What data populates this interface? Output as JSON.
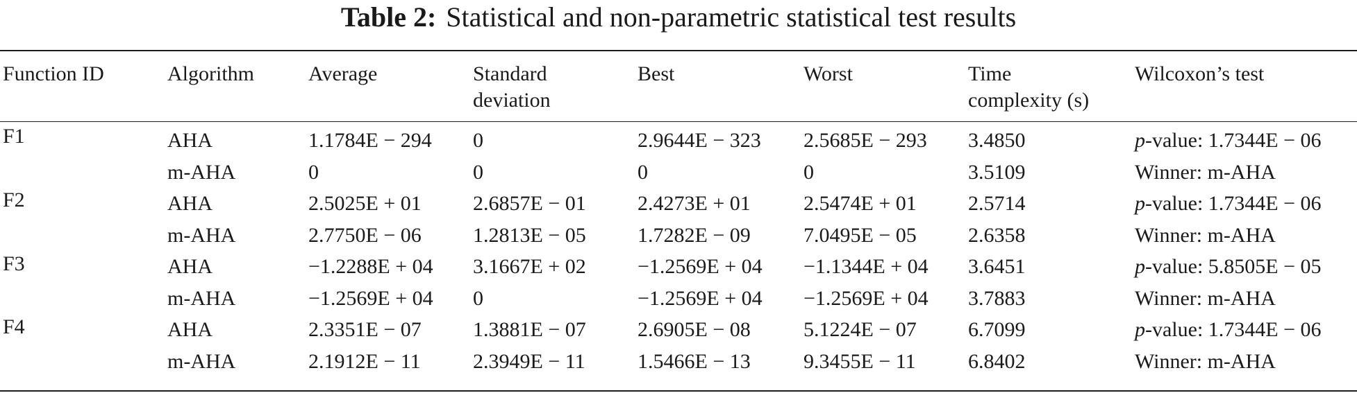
{
  "caption": {
    "label": "Table 2:",
    "text": "Statistical and non-parametric statistical test results"
  },
  "columns": [
    "Function ID",
    "Algorithm",
    "Average",
    "Standard deviation",
    "Best",
    "Worst",
    "Time complexity (s)",
    "Wilcoxon’s test"
  ],
  "header_lines": {
    "std_line1": "Standard",
    "std_line2": "deviation",
    "time_line1": "Time",
    "time_line2": "complexity (s)"
  },
  "rows": [
    {
      "function_id": "F1",
      "algorithm": "AHA",
      "average": "1.1784E − 294",
      "std": "0",
      "best": "2.9644E − 323",
      "worst": "2.5685E − 293",
      "time": "3.4850",
      "wilcoxon_prefix": "p",
      "wilcoxon": "-value: 1.7344E − 06"
    },
    {
      "function_id": "",
      "algorithm": "m-AHA",
      "average": "0",
      "std": "0",
      "best": "0",
      "worst": "0",
      "time": "3.5109",
      "wilcoxon_prefix": "",
      "wilcoxon": "Winner: m-AHA"
    },
    {
      "function_id": "F2",
      "algorithm": "AHA",
      "average": "2.5025E + 01",
      "std": "2.6857E − 01",
      "best": "2.4273E + 01",
      "worst": "2.5474E + 01",
      "time": "2.5714",
      "wilcoxon_prefix": "p",
      "wilcoxon": "-value: 1.7344E − 06"
    },
    {
      "function_id": "",
      "algorithm": "m-AHA",
      "average": "2.7750E − 06",
      "std": "1.2813E − 05",
      "best": "1.7282E − 09",
      "worst": "7.0495E − 05",
      "time": "2.6358",
      "wilcoxon_prefix": "",
      "wilcoxon": "Winner: m-AHA"
    },
    {
      "function_id": "F3",
      "algorithm": "AHA",
      "average": "−1.2288E + 04",
      "std": "3.1667E + 02",
      "best": "−1.2569E + 04",
      "worst": "−1.1344E + 04",
      "time": "3.6451",
      "wilcoxon_prefix": "p",
      "wilcoxon": "-value: 5.8505E − 05"
    },
    {
      "function_id": "",
      "algorithm": "m-AHA",
      "average": "−1.2569E + 04",
      "std": "0",
      "best": "−1.2569E + 04",
      "worst": "−1.2569E + 04",
      "time": "3.7883",
      "wilcoxon_prefix": "",
      "wilcoxon": "Winner: m-AHA"
    },
    {
      "function_id": "F4",
      "algorithm": "AHA",
      "average": "2.3351E − 07",
      "std": "1.3881E − 07",
      "best": "2.6905E − 08",
      "worst": "5.1224E − 07",
      "time": "6.7099",
      "wilcoxon_prefix": "p",
      "wilcoxon": "-value: 1.7344E − 06"
    },
    {
      "function_id": "",
      "algorithm": "m-AHA",
      "average": "2.1912E − 11",
      "std": "2.3949E − 11",
      "best": "1.5466E − 13",
      "worst": "9.3455E − 11",
      "time": "6.8402",
      "wilcoxon_prefix": "",
      "wilcoxon": "Winner: m-AHA"
    }
  ]
}
